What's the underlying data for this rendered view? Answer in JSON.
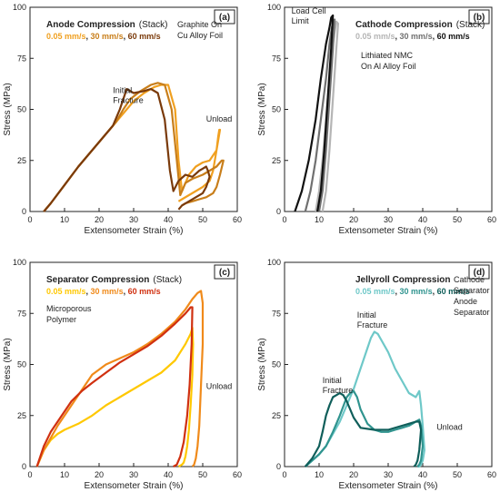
{
  "chart_data": [
    {
      "type": "line",
      "tag": "(a)",
      "title": "Anode Compression",
      "title_suffix": "(Stack)",
      "speed_labels": [
        "0.05 mm/s",
        "30 mm/s",
        "60 mm/s"
      ],
      "notes": [
        "Graphite On",
        "Cu Alloy Foil"
      ],
      "annotations": [
        {
          "lines": [
            "Initial",
            "Fracture"
          ],
          "at": [
            24,
            58
          ]
        },
        {
          "lines": [
            "Unload"
          ],
          "at": [
            51,
            44
          ]
        }
      ],
      "xlabel": "Extensometer Strain (%)",
      "ylabel": "Stress (MPa)",
      "xlim": [
        0,
        60
      ],
      "ylim": [
        0,
        100
      ],
      "xticks": [
        "0",
        "10",
        "20",
        "30",
        "40",
        "50",
        "60"
      ],
      "yticks": [
        "0",
        "25",
        "50",
        "75",
        "100"
      ],
      "series": [
        {
          "color": "#f0a020",
          "x": [
            4,
            6,
            10,
            14,
            18,
            22,
            25,
            27,
            30,
            33,
            36,
            38,
            40,
            42,
            43,
            44,
            46,
            48,
            50,
            52,
            54,
            54.5,
            54.8,
            55,
            54,
            53,
            52,
            50,
            48,
            46,
            44,
            43
          ],
          "y": [
            0,
            4,
            13,
            22,
            30,
            38,
            44,
            48,
            54,
            58,
            61,
            62,
            62,
            50,
            25,
            10,
            18,
            22,
            24,
            25,
            30,
            37,
            40,
            40,
            30,
            20,
            15,
            12,
            10,
            8,
            6,
            5
          ]
        },
        {
          "color": "#c87e1a",
          "x": [
            4,
            6,
            10,
            14,
            18,
            22,
            25,
            27,
            29,
            32,
            35,
            37,
            39,
            41,
            42.5,
            43.5,
            45,
            47,
            50,
            52,
            54,
            55,
            55.5,
            56,
            55,
            54,
            53,
            51,
            49,
            47,
            45,
            44
          ],
          "y": [
            0,
            4,
            13,
            22,
            30,
            38,
            44,
            50,
            55,
            59,
            62,
            63,
            62,
            50,
            25,
            8,
            14,
            16,
            18,
            20,
            22,
            24,
            25,
            25,
            18,
            12,
            9,
            7,
            6,
            5,
            4,
            3
          ]
        },
        {
          "color": "#7a3a0a",
          "x": [
            4,
            6,
            10,
            14,
            18,
            22,
            24,
            26,
            28,
            30,
            33,
            35,
            37,
            39,
            40.5,
            41.5,
            43,
            45,
            47,
            49,
            50,
            51,
            51.5,
            52,
            51,
            50,
            48,
            46,
            44,
            43
          ],
          "y": [
            0,
            4,
            13,
            22,
            30,
            38,
            42,
            50,
            60,
            58,
            59,
            60,
            58,
            45,
            20,
            10,
            15,
            18,
            17,
            20,
            21,
            22,
            20,
            17,
            12,
            9,
            7,
            5,
            3,
            1
          ]
        }
      ]
    },
    {
      "type": "line",
      "tag": "(b)",
      "title": "Cathode Compression",
      "title_suffix": "(Stack)",
      "speed_labels": [
        "0.05 mm/s",
        "30 mm/s",
        "60 mm/s"
      ],
      "notes": [
        "Lithiated NMC",
        "On Al Alloy Foil"
      ],
      "annotations": [
        {
          "lines": [
            "Load Cell",
            "Limit"
          ],
          "at": [
            2,
            97
          ]
        }
      ],
      "xlabel": "Extensometer Strain (%)",
      "ylabel": "Stress (MPa)",
      "xlim": [
        0,
        60
      ],
      "ylim": [
        0,
        100
      ],
      "xticks": [
        "0",
        "10",
        "20",
        "30",
        "40",
        "50",
        "60"
      ],
      "yticks": [
        "0",
        "25",
        "50",
        "75",
        "100"
      ],
      "series": [
        {
          "color": "#b5b5b5",
          "x": [
            9,
            10,
            11,
            12,
            13,
            14,
            14.5,
            15,
            15.5,
            15,
            14,
            13,
            12,
            11
          ],
          "y": [
            0,
            10,
            25,
            45,
            65,
            82,
            88,
            93,
            92,
            80,
            55,
            30,
            10,
            0
          ]
        },
        {
          "color": "#707070",
          "x": [
            6,
            7.5,
            9,
            10.5,
            12,
            13,
            13.5,
            14,
            14.5,
            14,
            13,
            12,
            11,
            10
          ],
          "y": [
            0,
            10,
            25,
            45,
            65,
            82,
            88,
            93,
            94,
            80,
            55,
            30,
            10,
            0
          ]
        },
        {
          "color": "#111111",
          "x": [
            3,
            5,
            7,
            9,
            10.5,
            12,
            13,
            13.5,
            14,
            13.5,
            12.5,
            11.5,
            10.5,
            9.5
          ],
          "y": [
            0,
            10,
            25,
            45,
            65,
            82,
            90,
            95,
            96,
            80,
            55,
            30,
            10,
            0
          ]
        }
      ]
    },
    {
      "type": "line",
      "tag": "(c)",
      "title": "Separator Compression",
      "title_suffix": "(Stack)",
      "speed_labels": [
        "0.05 mm/s",
        "30 mm/s",
        "60 mm/s"
      ],
      "notes": [
        "Microporous",
        "Polymer"
      ],
      "annotations": [
        {
          "lines": [
            "Unload"
          ],
          "at": [
            51,
            38
          ]
        }
      ],
      "xlabel": "Extensometer Strain (%)",
      "ylabel": "Stress (MPa)",
      "xlim": [
        0,
        60
      ],
      "ylim": [
        0,
        100
      ],
      "xticks": [
        "0",
        "10",
        "20",
        "30",
        "40",
        "50",
        "60"
      ],
      "yticks": [
        "0",
        "25",
        "50",
        "75",
        "100"
      ],
      "series": [
        {
          "color": "#ffc800",
          "x": [
            2,
            4,
            6,
            8,
            10,
            14,
            18,
            22,
            26,
            30,
            34,
            38,
            42,
            45,
            46.5,
            47,
            47.2,
            47,
            46.5,
            46,
            45.5,
            45,
            44.5,
            44,
            43
          ],
          "y": [
            0,
            8,
            13,
            16,
            18,
            21,
            25,
            30,
            34,
            38,
            42,
            46,
            52,
            60,
            65,
            68,
            60,
            45,
            30,
            18,
            10,
            5,
            2,
            1,
            0
          ]
        },
        {
          "color": "#f08a1a",
          "x": [
            2,
            4,
            6,
            8,
            10,
            12,
            14,
            16,
            18,
            22,
            26,
            30,
            34,
            38,
            42,
            45,
            47,
            48.5,
            49.5,
            50,
            50,
            49.5,
            49,
            48.5,
            48,
            47.5,
            47
          ],
          "y": [
            0,
            8,
            14,
            20,
            25,
            30,
            35,
            40,
            45,
            50,
            53,
            56,
            60,
            65,
            71,
            77,
            82,
            85,
            86,
            80,
            60,
            40,
            20,
            10,
            4,
            1,
            0
          ]
        },
        {
          "color": "#d03010",
          "x": [
            2,
            4,
            6,
            8,
            10,
            12,
            15,
            18,
            22,
            26,
            30,
            34,
            38,
            42,
            45,
            46.5,
            47,
            46.8,
            46.2,
            45.5,
            44.5,
            43.5,
            42.5,
            41.5
          ],
          "y": [
            0,
            10,
            17,
            22,
            27,
            32,
            37,
            41,
            46,
            51,
            55,
            59,
            64,
            70,
            75,
            78,
            78,
            60,
            40,
            25,
            12,
            5,
            1,
            0
          ]
        }
      ]
    },
    {
      "type": "line",
      "tag": "(d)",
      "title": "Jellyroll Compression",
      "title_suffix": "",
      "speed_labels": [
        "0.05 mm/s",
        "30 mm/s",
        "60 mm/s"
      ],
      "notes": [
        "Cathode",
        "Separator",
        "Anode",
        "Separator"
      ],
      "annotations": [
        {
          "lines": [
            "Initial",
            "Fracture"
          ],
          "at": [
            21,
            73
          ]
        },
        {
          "lines": [
            "Initial",
            "Fracture"
          ],
          "at": [
            11,
            41
          ]
        },
        {
          "lines": [
            "Unload"
          ],
          "at": [
            44,
            18
          ]
        }
      ],
      "xlabel": "Extensometer Strain (%)",
      "ylabel": "Stress (MPa)",
      "xlim": [
        0,
        60
      ],
      "ylim": [
        0,
        100
      ],
      "xticks": [
        "0",
        "10",
        "20",
        "30",
        "40",
        "50",
        "60"
      ],
      "yticks": [
        "0",
        "25",
        "50",
        "75",
        "100"
      ],
      "series": [
        {
          "color": "#6ec8c8",
          "x": [
            6,
            8,
            10,
            12,
            14,
            16,
            18,
            20,
            22,
            24,
            25,
            26,
            27,
            28,
            30,
            32,
            34,
            36,
            38,
            39,
            39.5,
            40,
            40.5,
            40,
            39.5,
            39,
            38.5
          ],
          "y": [
            0,
            3,
            6,
            10,
            16,
            22,
            30,
            38,
            48,
            58,
            63,
            66,
            65,
            62,
            56,
            48,
            42,
            36,
            34,
            37,
            30,
            20,
            8,
            3,
            1,
            0,
            0
          ]
        },
        {
          "color": "#30948f",
          "x": [
            6,
            8,
            10,
            12,
            14,
            16,
            18,
            19,
            20,
            21,
            22,
            24,
            26,
            28,
            30,
            32,
            34,
            36,
            38,
            39,
            39.5,
            40,
            39.5,
            39,
            38.5
          ],
          "y": [
            0,
            3,
            6,
            10,
            17,
            25,
            34,
            36,
            37,
            34,
            28,
            21,
            18,
            17,
            17,
            18,
            19,
            20,
            22,
            23,
            20,
            10,
            3,
            1,
            0
          ]
        },
        {
          "color": "#0f5e5a",
          "x": [
            6,
            8,
            10,
            11,
            12,
            13,
            14,
            15,
            16,
            17,
            18,
            20,
            22,
            26,
            30,
            34,
            36,
            38,
            39,
            39.5,
            39,
            38.5,
            38,
            37.5
          ],
          "y": [
            0,
            4,
            10,
            17,
            25,
            30,
            34,
            35,
            36,
            35,
            32,
            24,
            19,
            18,
            18,
            20,
            21,
            22,
            22,
            18,
            8,
            3,
            1,
            0
          ]
        }
      ]
    }
  ]
}
